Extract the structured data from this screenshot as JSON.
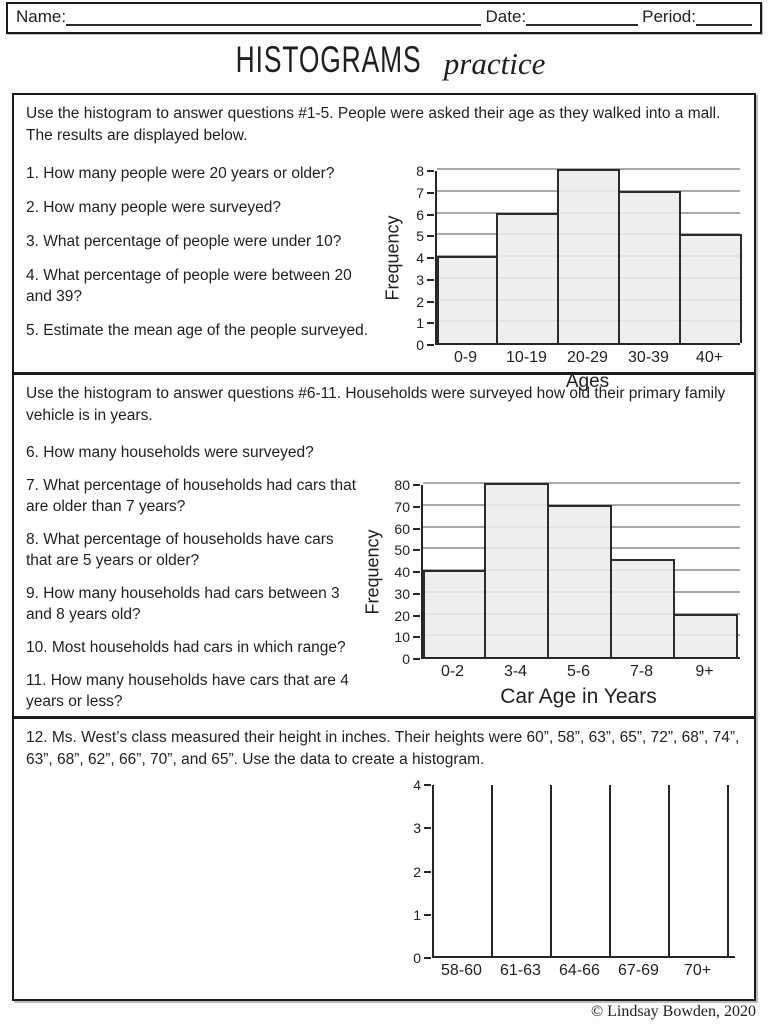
{
  "header": {
    "name_label": "Name:",
    "date_label": "Date:",
    "period_label": "Period:"
  },
  "title": {
    "main": "HISTOGRAMS",
    "script": "practice"
  },
  "sections": [
    {
      "intro": "Use the histogram to answer questions #1-5. People were asked their age as they walked into a mall. The results are displayed below.",
      "questions": [
        "1. How many people were 20 years or older?",
        "2. How many people were surveyed?",
        "3. What percentage of people were under 10?",
        "4. What percentage of people were between 20 and 39?",
        "5. Estimate the mean age of the people surveyed."
      ]
    },
    {
      "intro": "Use the histogram to answer questions #6-11. Households were surveyed how old their primary family vehicle is in years.",
      "questions": [
        "6. How many households were surveyed?",
        "7. What percentage of households had cars that are older than 7 years?",
        "8. What percentage of households have cars that are 5 years or older?",
        "9. How many households had cars between 3 and 8 years old?",
        "10. Most households had cars in which range?",
        "11. How many households have cars that are 4 years or less?"
      ]
    },
    {
      "intro": "12. Ms. West’s class measured their height in inches. Their heights were 60”, 58”, 63”, 65”, 72”, 68”, 74”, 63”, 68”, 62”, 66”, 70”, and 65”. Use the data to create a histogram."
    }
  ],
  "chart_data": [
    {
      "type": "bar",
      "categories": [
        "0-9",
        "10-19",
        "20-29",
        "30-39",
        "40+"
      ],
      "values": [
        4,
        6,
        8,
        7,
        5
      ],
      "title": "",
      "xlabel": "Ages",
      "ylabel": "Frequency",
      "ylim": [
        0,
        8
      ],
      "ystep": 1,
      "grid": true
    },
    {
      "type": "bar",
      "categories": [
        "0-2",
        "3-4",
        "5-6",
        "7-8",
        "9+"
      ],
      "values": [
        40,
        80,
        70,
        45,
        20
      ],
      "title": "",
      "xlabel": "Car Age in Years",
      "ylabel": "Frequency",
      "ylim": [
        0,
        80
      ],
      "ystep": 10,
      "grid": true
    },
    {
      "type": "bar",
      "categories": [
        "58-60",
        "61-63",
        "64-66",
        "67-69",
        "70+"
      ],
      "values": [
        null,
        null,
        null,
        null,
        null
      ],
      "title": "",
      "xlabel": "",
      "ylabel": "",
      "ylim": [
        0,
        4
      ],
      "ystep": 1,
      "grid": false,
      "empty_bins": true
    }
  ],
  "footer": {
    "copyright": "© Lindsay Bowden, 2020"
  }
}
